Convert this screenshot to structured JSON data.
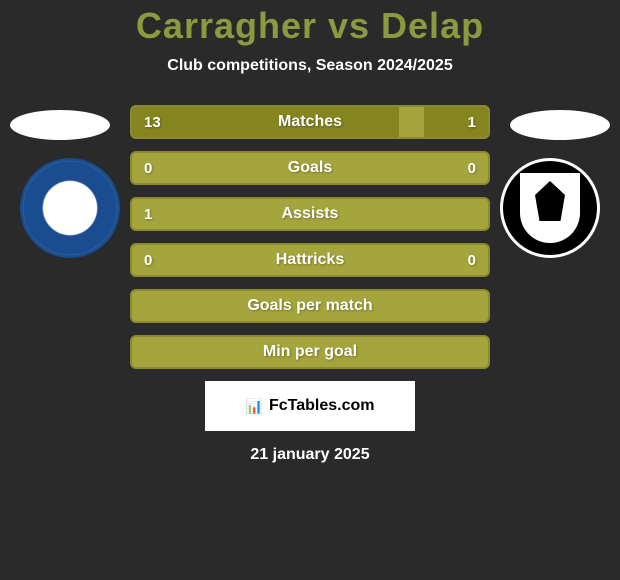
{
  "title": "Carragher vs Delap",
  "subtitle": "Club competitions, Season 2024/2025",
  "watermark": "FcTables.com",
  "date": "21 january 2025",
  "colors": {
    "background": "#2a2a2a",
    "title_color": "#8a9b3f",
    "text_color": "#ffffff",
    "stat_bg": "#a5a53d",
    "stat_border": "#8a8a2f",
    "stat_fill": "#858520"
  },
  "stats": [
    {
      "label": "Matches",
      "left_value": "13",
      "right_value": "1",
      "left_fill_pct": 75,
      "right_fill_pct": 18
    },
    {
      "label": "Goals",
      "left_value": "0",
      "right_value": "0",
      "left_fill_pct": 0,
      "right_fill_pct": 0
    },
    {
      "label": "Assists",
      "left_value": "1",
      "right_value": "",
      "left_fill_pct": 0,
      "right_fill_pct": 0
    },
    {
      "label": "Hattricks",
      "left_value": "0",
      "right_value": "0",
      "left_fill_pct": 0,
      "right_fill_pct": 0
    },
    {
      "label": "Goals per match",
      "left_value": "",
      "right_value": "",
      "left_fill_pct": 0,
      "right_fill_pct": 0
    },
    {
      "label": "Min per goal",
      "left_value": "",
      "right_value": "",
      "left_fill_pct": 0,
      "right_fill_pct": 0
    }
  ]
}
